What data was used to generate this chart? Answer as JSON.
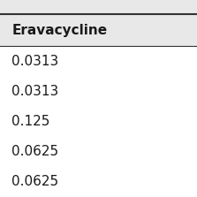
{
  "header": "Eravacycline",
  "rows": [
    "0.0313",
    "0.0313",
    "0.125",
    "0.0625",
    "0.0625"
  ],
  "header_bg": "#e8e8e8",
  "body_bg": "#ffffff",
  "top_strip_bg": "#e8e8e8",
  "header_font_size": 11,
  "row_font_size": 11,
  "border_color": "#333333",
  "text_color": "#1a1a1a"
}
